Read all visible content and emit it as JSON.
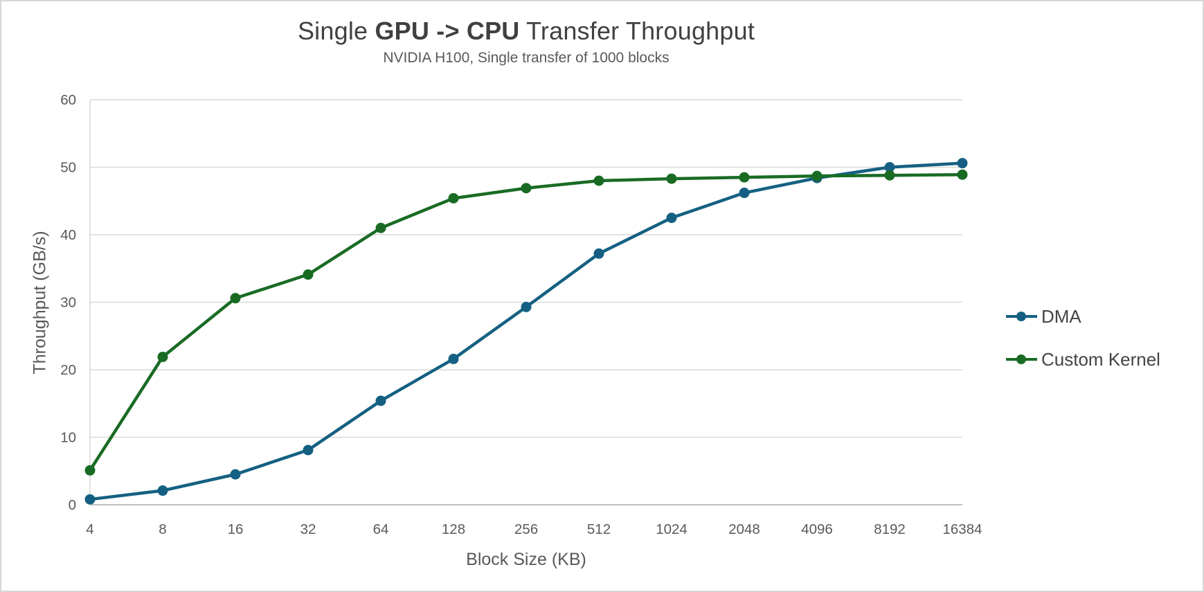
{
  "title": {
    "pre": "Single ",
    "bold": "GPU -> CPU",
    "post": " Transfer Throughput"
  },
  "subtitle": "NVIDIA H100, Single transfer of 1000 blocks",
  "chart_data": {
    "type": "line",
    "title": "Single GPU -> CPU Transfer Throughput",
    "subtitle": "NVIDIA H100, Single transfer of 1000 blocks",
    "xlabel": "Block Size (KB)",
    "ylabel": "Throughput (GB/s)",
    "categories": [
      "4",
      "8",
      "16",
      "32",
      "64",
      "128",
      "256",
      "512",
      "1024",
      "2048",
      "4096",
      "8192",
      "16384"
    ],
    "series": [
      {
        "name": "DMA",
        "color": "#156082",
        "values": [
          0.8,
          2.1,
          4.5,
          8.1,
          15.4,
          21.6,
          29.3,
          37.2,
          42.5,
          46.2,
          48.4,
          50.0,
          50.6
        ]
      },
      {
        "name": "Custom Kernel",
        "color": "#196B24",
        "values": [
          5.1,
          21.9,
          30.6,
          34.1,
          41.0,
          45.4,
          46.9,
          48.0,
          48.3,
          48.5,
          48.7,
          48.8,
          48.9
        ]
      }
    ],
    "ylim": [
      0,
      60
    ],
    "yticks": [
      0,
      10,
      20,
      30,
      40,
      50,
      60
    ],
    "grid": "horizontal",
    "legend_position": "right",
    "marker": "circle",
    "colors": {
      "gridline": "#D9D9D9",
      "axis_line": "#BFBFBF",
      "tick_text": "#595959",
      "title_text": "#404040",
      "subtitle_text": "#595959",
      "axis_title_text": "#595959",
      "legend_text": "#444444",
      "background": "#FFFFFF"
    }
  }
}
